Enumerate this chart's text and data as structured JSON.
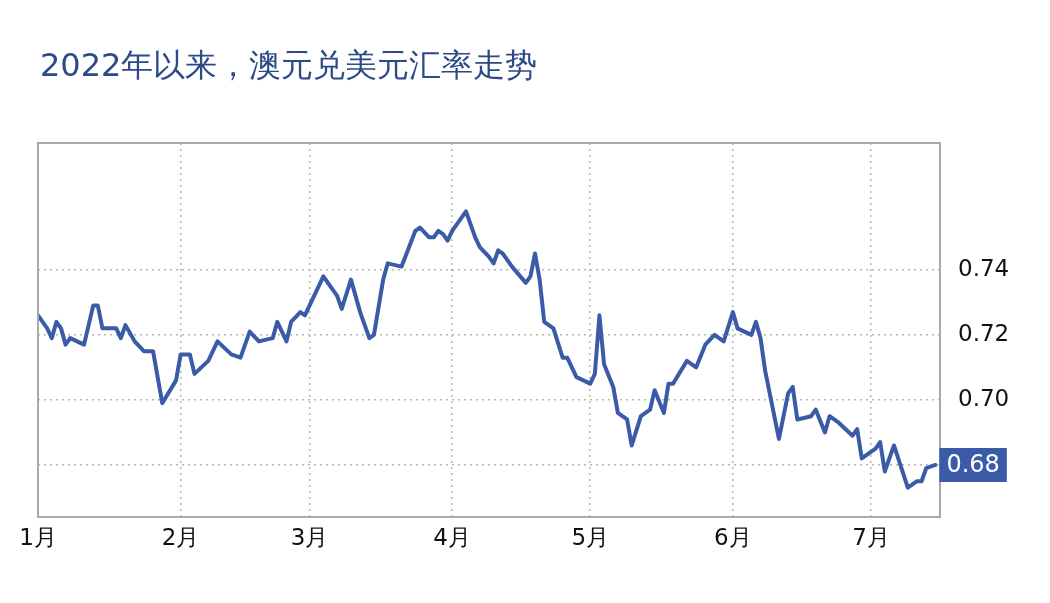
{
  "chart_data": {
    "type": "line",
    "title": "2022年以来，澳元兑美元汇率走势",
    "x": [
      "2022-01-01",
      "2022-01-03",
      "2022-01-04",
      "2022-01-05",
      "2022-01-06",
      "2022-01-07",
      "2022-01-08",
      "2022-01-11",
      "2022-01-13",
      "2022-01-14",
      "2022-01-15",
      "2022-01-18",
      "2022-01-19",
      "2022-01-20",
      "2022-01-22",
      "2022-01-24",
      "2022-01-26",
      "2022-01-28",
      "2022-01-31",
      "2022-02-01",
      "2022-02-03",
      "2022-02-04",
      "2022-02-07",
      "2022-02-09",
      "2022-02-12",
      "2022-02-14",
      "2022-02-16",
      "2022-02-18",
      "2022-02-21",
      "2022-02-22",
      "2022-02-24",
      "2022-02-25",
      "2022-02-27",
      "2022-02-28",
      "2022-03-04",
      "2022-03-07",
      "2022-03-08",
      "2022-03-10",
      "2022-03-12",
      "2022-03-14",
      "2022-03-15",
      "2022-03-17",
      "2022-03-18",
      "2022-03-21",
      "2022-03-24",
      "2022-03-25",
      "2022-03-27",
      "2022-03-28",
      "2022-03-29",
      "2022-03-30",
      "2022-03-31",
      "2022-04-01",
      "2022-04-02",
      "2022-04-04",
      "2022-04-06",
      "2022-04-07",
      "2022-04-09",
      "2022-04-10",
      "2022-04-11",
      "2022-04-12",
      "2022-04-14",
      "2022-04-17",
      "2022-04-18",
      "2022-04-19",
      "2022-04-20",
      "2022-04-21",
      "2022-04-23",
      "2022-04-25",
      "2022-04-26",
      "2022-04-28",
      "2022-05-01",
      "2022-05-02",
      "2022-05-03",
      "2022-05-04",
      "2022-05-06",
      "2022-05-07",
      "2022-05-09",
      "2022-05-10",
      "2022-05-12",
      "2022-05-14",
      "2022-05-15",
      "2022-05-17",
      "2022-05-18",
      "2022-05-19",
      "2022-05-22",
      "2022-05-24",
      "2022-05-26",
      "2022-05-28",
      "2022-05-30",
      "2022-06-01",
      "2022-06-02",
      "2022-06-05",
      "2022-06-06",
      "2022-06-07",
      "2022-06-08",
      "2022-06-11",
      "2022-06-13",
      "2022-06-14",
      "2022-06-15",
      "2022-06-18",
      "2022-06-19",
      "2022-06-21",
      "2022-06-22",
      "2022-06-24",
      "2022-06-27",
      "2022-06-28",
      "2022-06-29",
      "2022-07-02",
      "2022-07-03",
      "2022-07-04",
      "2022-07-06",
      "2022-07-09",
      "2022-07-11",
      "2022-07-12",
      "2022-07-13",
      "2022-07-15"
    ],
    "series": [
      {
        "color": "#3b5ba8",
        "values": [
          0.726,
          0.722,
          0.719,
          0.724,
          0.722,
          0.717,
          0.719,
          0.717,
          0.729,
          0.729,
          0.722,
          0.722,
          0.719,
          0.723,
          0.718,
          0.715,
          0.715,
          0.699,
          0.706,
          0.714,
          0.714,
          0.708,
          0.712,
          0.718,
          0.714,
          0.713,
          0.721,
          0.718,
          0.719,
          0.724,
          0.718,
          0.724,
          0.727,
          0.726,
          0.738,
          0.732,
          0.728,
          0.737,
          0.727,
          0.719,
          0.72,
          0.737,
          0.742,
          0.741,
          0.752,
          0.753,
          0.75,
          0.75,
          0.752,
          0.751,
          0.749,
          0.752,
          0.754,
          0.758,
          0.75,
          0.747,
          0.744,
          0.742,
          0.746,
          0.745,
          0.741,
          0.736,
          0.738,
          0.745,
          0.737,
          0.724,
          0.722,
          0.713,
          0.713,
          0.707,
          0.705,
          0.708,
          0.726,
          0.711,
          0.704,
          0.696,
          0.694,
          0.686,
          0.695,
          0.697,
          0.703,
          0.696,
          0.705,
          0.705,
          0.712,
          0.71,
          0.717,
          0.72,
          0.718,
          0.727,
          0.722,
          0.72,
          0.724,
          0.719,
          0.709,
          0.688,
          0.702,
          0.704,
          0.694,
          0.695,
          0.697,
          0.69,
          0.695,
          0.693,
          0.689,
          0.691,
          0.682,
          0.685,
          0.687,
          0.678,
          0.686,
          0.673,
          0.675,
          0.675,
          0.679,
          0.68
        ]
      }
    ],
    "xlim": [
      "2022-01-01",
      "2022-07-16"
    ],
    "xticks": [
      {
        "value": "2022-01-01",
        "label": "1月"
      },
      {
        "value": "2022-02-01",
        "label": "2月"
      },
      {
        "value": "2022-03-01",
        "label": "3月"
      },
      {
        "value": "2022-04-01",
        "label": "4月"
      },
      {
        "value": "2022-05-01",
        "label": "5月"
      },
      {
        "value": "2022-06-01",
        "label": "6月"
      },
      {
        "value": "2022-07-01",
        "label": "7月"
      }
    ],
    "ylim": [
      0.664,
      0.779
    ],
    "yticks": [
      {
        "value": 0.68,
        "label": null
      },
      {
        "value": 0.7,
        "label": "0.70"
      },
      0.72,
      0.74
    ],
    "annotations": [
      {
        "text": "0.68",
        "x": "2022-07-15",
        "y": 0.68
      }
    ],
    "grid": true,
    "marker": "none"
  }
}
